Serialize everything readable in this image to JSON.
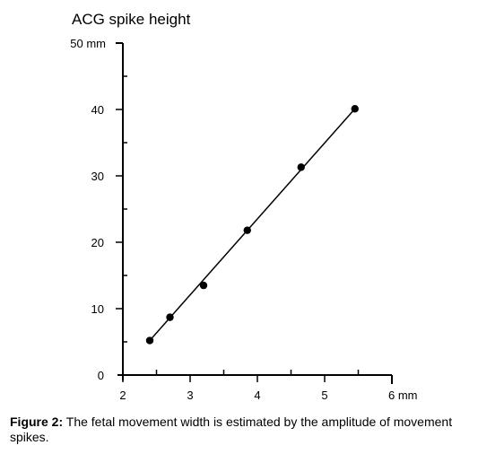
{
  "chart_data": {
    "type": "scatter",
    "title": "ACG spike height",
    "xlabel": "",
    "ylabel": "",
    "x_unit": "mm",
    "y_unit": "mm",
    "xlim": [
      2,
      6
    ],
    "ylim": [
      0,
      50
    ],
    "x_tick_labels": [
      "2",
      "3",
      "4",
      "5",
      "6 mm"
    ],
    "y_tick_labels": [
      "0",
      "10",
      "20",
      "30",
      "40",
      "50 mm"
    ],
    "grid": false,
    "legend": "none",
    "points": [
      {
        "x": 2.4,
        "y": 5.2
      },
      {
        "x": 2.7,
        "y": 8.7
      },
      {
        "x": 3.2,
        "y": 13.5
      },
      {
        "x": 3.85,
        "y": 21.8
      },
      {
        "x": 4.65,
        "y": 31.3
      },
      {
        "x": 5.45,
        "y": 40.1
      }
    ],
    "fit_line": {
      "x": [
        2.4,
        5.45
      ],
      "y": [
        5.2,
        40.1
      ]
    }
  },
  "caption": {
    "label": "Figure 2:",
    "text": " The fetal movement width is estimated by the amplitude of movement spikes."
  }
}
